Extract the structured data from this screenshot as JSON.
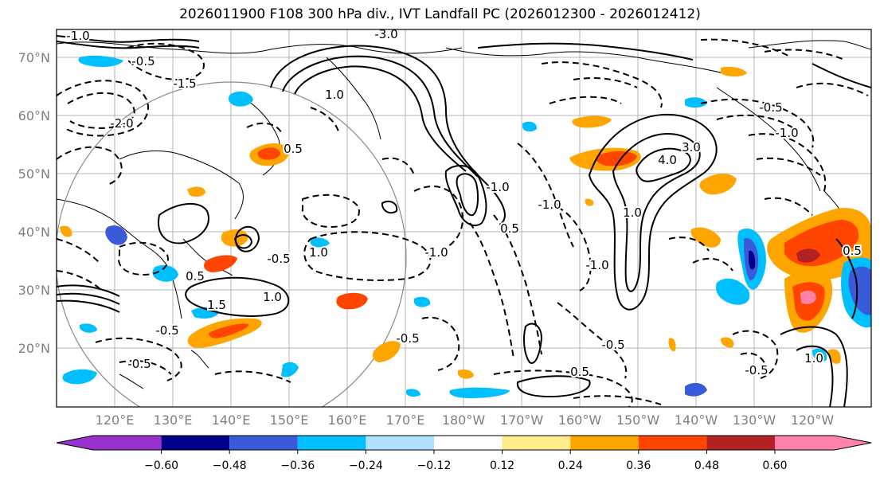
{
  "title": "2026011900 F108 300 hPa div., IVT Landfall PC (2026012300 - 2026012412)",
  "lat_labels": [
    "70°N",
    "60°N",
    "50°N",
    "40°N",
    "30°N",
    "20°N"
  ],
  "lon_labels": [
    "120°E",
    "130°E",
    "140°E",
    "150°E",
    "160°E",
    "170°E",
    "180°W",
    "170°W",
    "160°W",
    "150°W",
    "140°W",
    "130°W",
    "120°W"
  ],
  "colorbar": {
    "ticks": [
      "−0.60",
      "−0.48",
      "−0.36",
      "−0.24",
      "−0.12",
      "0.12",
      "0.24",
      "0.36",
      "0.48",
      "0.60"
    ],
    "colors": [
      "#9932cc",
      "#00008b",
      "#3a5bd9",
      "#00bfff",
      "#b0e2ff",
      "#ffffff",
      "#ffec8b",
      "#ffa500",
      "#ff4500",
      "#b22222",
      "#ff82ab"
    ]
  },
  "contour_labels": [
    "-1.0",
    "-0.5",
    "-2.0",
    "-1.5",
    "-3.0",
    "1.0",
    "0.5",
    "-1.0",
    "0.5",
    "1.0",
    "-0.5",
    "1.5",
    "-1.0",
    "-0.5",
    "1.0",
    "-0.5",
    "0.5",
    "4.0",
    "3.0",
    "1.0",
    "-1.0",
    "-1.0",
    "-0.5",
    "-0.5",
    "0.5",
    "1.0",
    "-0.5",
    "-1.0",
    "-0.5",
    "0.5"
  ]
}
